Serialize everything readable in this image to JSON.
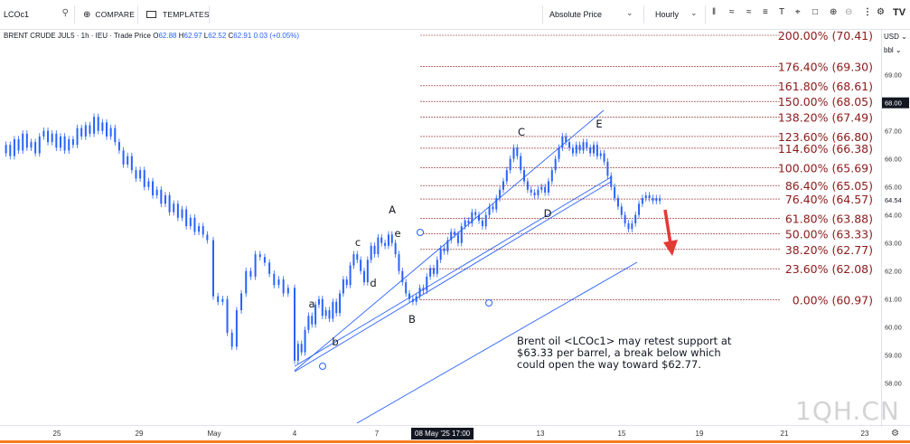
{
  "toolbar": {
    "symbol": "LCOc1",
    "compare_label": "COMPARE",
    "templates_label": "TEMPLATES",
    "price_mode": "Absolute Price",
    "interval": "Hourly"
  },
  "legend": {
    "name": "BRENT CRUDE JUL5 · 1h · IEU · Trade Price",
    "o_label": "O",
    "o": "62.88",
    "h_label": "H",
    "h": "62.97",
    "l_label": "L",
    "l": "62.52",
    "c_label": "C",
    "c": "62.91",
    "chg": "0.03 (+0.05%)"
  },
  "axis": {
    "currency": "USD",
    "unit": "bbl",
    "cursor_date": "08 May '25  17:00",
    "current_price": "68.00",
    "last_price": "64.54"
  },
  "note": {
    "line1": "Brent oil <LCOc1> may retest support at",
    "line2": "$63.33 per barrel, a break below which",
    "line3": "could open the way toward $62.77."
  },
  "watermark": "1QH.CN",
  "colors": {
    "candle": "#2962ff",
    "fib": "#8b1a1a",
    "channel": "#2962ff",
    "arrow": "#e53935",
    "bottom_bar": "#f57c1f"
  },
  "chart_data": {
    "type": "candlestick",
    "title": "BRENT CRUDE JUL5",
    "ylim": [
      57.4,
      71.0
    ],
    "yticks": [
      58.0,
      59.0,
      60.0,
      61.0,
      62.0,
      63.0,
      64.0,
      65.0,
      66.0,
      67.0,
      68.0,
      69.0
    ],
    "xticks": [
      "25",
      "29",
      "May",
      "4",
      "7",
      "8 May",
      "13",
      "15",
      "19",
      "21",
      "23"
    ],
    "fibonacci": [
      {
        "label": "200.00% (70.41)",
        "pct": "200.00%",
        "price": 70.41
      },
      {
        "label": "176.40% (69.30)",
        "pct": "176.40%",
        "price": 69.3
      },
      {
        "label": "161.80% (68.61)",
        "pct": "161.80%",
        "price": 68.61
      },
      {
        "label": "150.00% (68.05)",
        "pct": "150.00%",
        "price": 68.05
      },
      {
        "label": "138.20% (67.49)",
        "pct": "138.20%",
        "price": 67.49
      },
      {
        "label": "123.60% (66.80)",
        "pct": "123.60%",
        "price": 66.8
      },
      {
        "label": "114.60% (66.38)",
        "pct": "114.60%",
        "price": 66.38
      },
      {
        "label": "100.00% (65.69)",
        "pct": "100.00%",
        "price": 65.69
      },
      {
        "label": "86.40% (65.05)",
        "pct": "86.40%",
        "price": 65.05
      },
      {
        "label": "76.40% (64.57)",
        "pct": "76.40%",
        "price": 64.57
      },
      {
        "label": "61.80% (63.88)",
        "pct": "61.80%",
        "price": 63.88
      },
      {
        "label": "50.00% (63.33)",
        "pct": "50.00%",
        "price": 63.33
      },
      {
        "label": "38.20% (62.77)",
        "pct": "38.20%",
        "price": 62.77
      },
      {
        "label": "23.60% (62.08)",
        "pct": "23.60%",
        "price": 62.08
      },
      {
        "label": "0.00% (60.97)",
        "pct": "0.00%",
        "price": 60.97
      }
    ],
    "wave_labels": [
      "a",
      "b",
      "c",
      "d",
      "e",
      "A",
      "B",
      "C",
      "D",
      "E"
    ],
    "price_path": [
      66.2,
      66.5,
      66.1,
      66.7,
      66.3,
      66.9,
      66.4,
      66.6,
      66.2,
      66.8,
      67.0,
      66.6,
      66.9,
      66.4,
      66.8,
      66.3,
      66.7,
      66.5,
      67.1,
      66.8,
      67.2,
      66.9,
      67.5,
      67.0,
      67.3,
      66.8,
      67.1,
      66.6,
      66.3,
      65.8,
      66.1,
      65.6,
      65.3,
      65.6,
      65.0,
      65.2,
      64.7,
      64.9,
      64.4,
      64.7,
      64.1,
      64.4,
      63.9,
      64.2,
      63.6,
      63.9,
      63.4,
      63.6,
      63.3,
      63.1,
      61.1,
      60.9,
      61.0,
      59.8,
      59.3,
      60.6,
      61.2,
      62.0,
      61.8,
      62.6,
      62.5,
      62.3,
      61.9,
      61.5,
      61.7,
      61.2,
      61.4,
      58.8,
      59.4,
      59.1,
      59.9,
      60.4,
      60.1,
      60.8,
      61.0,
      60.4,
      60.6,
      60.3,
      60.9,
      60.5,
      61.2,
      61.7,
      61.5,
      62.2,
      62.6,
      62.4,
      62.0,
      61.6,
      62.4,
      62.9,
      62.6,
      63.2,
      63.0,
      62.9,
      63.3,
      63.0,
      62.6,
      62.0,
      61.6,
      61.2,
      61.0,
      60.9,
      61.1,
      61.4,
      61.3,
      61.8,
      62.1,
      61.9,
      62.4,
      62.8,
      62.7,
      63.1,
      63.4,
      63.3,
      63.0,
      63.6,
      63.8,
      63.7,
      64.1,
      64.0,
      63.8,
      63.6,
      64.0,
      64.3,
      64.2,
      64.6,
      64.9,
      65.2,
      65.6,
      66.0,
      66.4,
      66.1,
      65.6,
      65.2,
      64.9,
      64.8,
      64.7,
      64.9,
      65.0,
      64.8,
      65.2,
      65.6,
      66.0,
      66.4,
      66.8,
      66.6,
      66.4,
      66.2,
      66.5,
      66.3,
      66.6,
      66.4,
      66.2,
      66.5,
      66.1,
      66.2,
      65.9,
      65.4,
      65.0,
      64.6,
      64.3,
      64.0,
      63.7,
      63.5,
      63.7,
      64.0,
      64.4,
      64.6,
      64.7,
      64.6,
      64.5,
      64.6,
      64.5
    ]
  }
}
